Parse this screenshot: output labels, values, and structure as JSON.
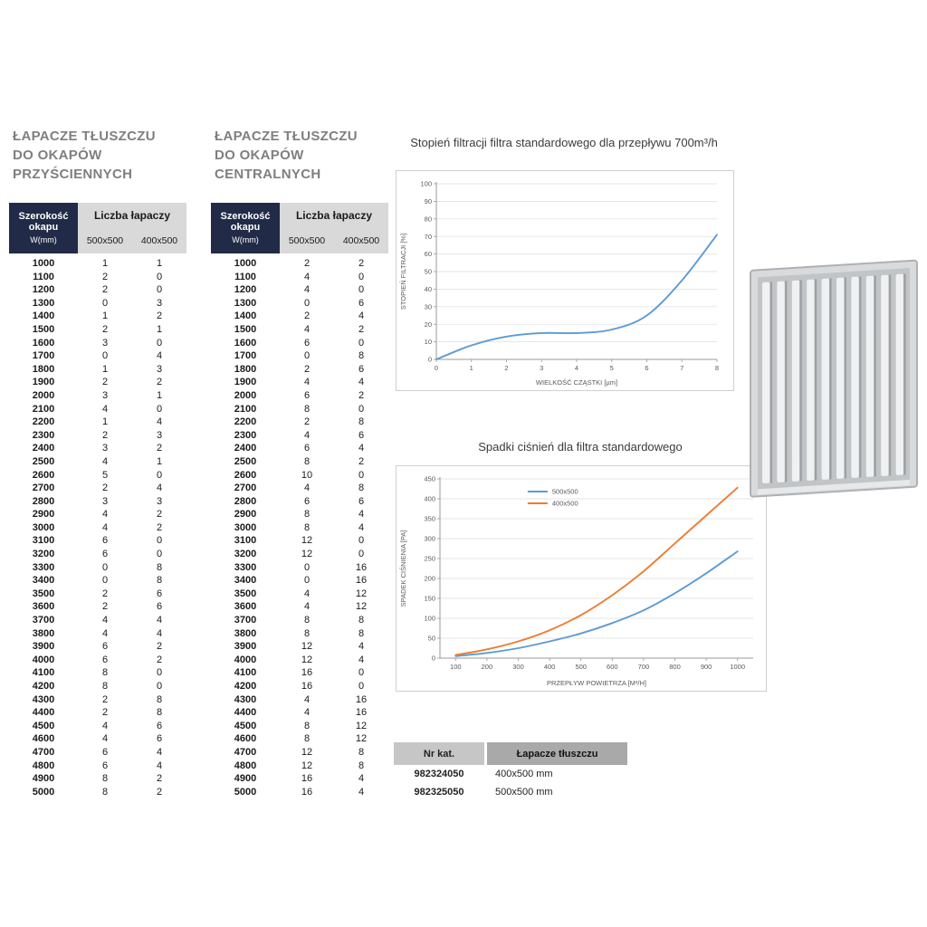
{
  "page": {
    "background": "#ffffff"
  },
  "table_header": {
    "width_line1": "Szerokość",
    "width_line2": "okapu",
    "width_unit": "W(mm)",
    "count_label": "Liczba łapaczy",
    "col1": "500x500",
    "col2": "400x500"
  },
  "wall_table": {
    "title_lines": [
      "ŁAPACZE TŁUSZCZU",
      "DO OKAPÓW",
      "PRZYŚCIENNYCH"
    ],
    "rows": [
      [
        1000,
        1,
        1
      ],
      [
        1100,
        2,
        0
      ],
      [
        1200,
        2,
        0
      ],
      [
        1300,
        0,
        3
      ],
      [
        1400,
        1,
        2
      ],
      [
        1500,
        2,
        1
      ],
      [
        1600,
        3,
        0
      ],
      [
        1700,
        0,
        4
      ],
      [
        1800,
        1,
        3
      ],
      [
        1900,
        2,
        2
      ],
      [
        2000,
        3,
        1
      ],
      [
        2100,
        4,
        0
      ],
      [
        2200,
        1,
        4
      ],
      [
        2300,
        2,
        3
      ],
      [
        2400,
        3,
        2
      ],
      [
        2500,
        4,
        1
      ],
      [
        2600,
        5,
        0
      ],
      [
        2700,
        2,
        4
      ],
      [
        2800,
        3,
        3
      ],
      [
        2900,
        4,
        2
      ],
      [
        3000,
        4,
        2
      ],
      [
        3100,
        6,
        0
      ],
      [
        3200,
        6,
        0
      ],
      [
        3300,
        0,
        8
      ],
      [
        3400,
        0,
        8
      ],
      [
        3500,
        2,
        6
      ],
      [
        3600,
        2,
        6
      ],
      [
        3700,
        4,
        4
      ],
      [
        3800,
        4,
        4
      ],
      [
        3900,
        6,
        2
      ],
      [
        4000,
        6,
        2
      ],
      [
        4100,
        8,
        0
      ],
      [
        4200,
        8,
        0
      ],
      [
        4300,
        2,
        8
      ],
      [
        4400,
        2,
        8
      ],
      [
        4500,
        4,
        6
      ],
      [
        4600,
        4,
        6
      ],
      [
        4700,
        6,
        4
      ],
      [
        4800,
        6,
        4
      ],
      [
        4900,
        8,
        2
      ],
      [
        5000,
        8,
        2
      ]
    ]
  },
  "central_table": {
    "title_lines": [
      "ŁAPACZE TŁUSZCZU",
      "DO OKAPÓW",
      "CENTRALNYCH"
    ],
    "rows": [
      [
        1000,
        2,
        2
      ],
      [
        1100,
        4,
        0
      ],
      [
        1200,
        4,
        0
      ],
      [
        1300,
        0,
        6
      ],
      [
        1400,
        2,
        4
      ],
      [
        1500,
        4,
        2
      ],
      [
        1600,
        6,
        0
      ],
      [
        1700,
        0,
        8
      ],
      [
        1800,
        2,
        6
      ],
      [
        1900,
        4,
        4
      ],
      [
        2000,
        6,
        2
      ],
      [
        2100,
        8,
        0
      ],
      [
        2200,
        2,
        8
      ],
      [
        2300,
        4,
        6
      ],
      [
        2400,
        6,
        4
      ],
      [
        2500,
        8,
        2
      ],
      [
        2600,
        10,
        0
      ],
      [
        2700,
        4,
        8
      ],
      [
        2800,
        6,
        6
      ],
      [
        2900,
        8,
        4
      ],
      [
        3000,
        8,
        4
      ],
      [
        3100,
        12,
        0
      ],
      [
        3200,
        12,
        0
      ],
      [
        3300,
        0,
        16
      ],
      [
        3400,
        0,
        16
      ],
      [
        3500,
        4,
        12
      ],
      [
        3600,
        4,
        12
      ],
      [
        3700,
        8,
        8
      ],
      [
        3800,
        8,
        8
      ],
      [
        3900,
        12,
        4
      ],
      [
        4000,
        12,
        4
      ],
      [
        4100,
        16,
        0
      ],
      [
        4200,
        16,
        0
      ],
      [
        4300,
        4,
        16
      ],
      [
        4400,
        4,
        16
      ],
      [
        4500,
        8,
        12
      ],
      [
        4600,
        8,
        12
      ],
      [
        4700,
        12,
        8
      ],
      [
        4800,
        12,
        8
      ],
      [
        4900,
        16,
        4
      ],
      [
        5000,
        16,
        4
      ]
    ]
  },
  "chart_data": [
    {
      "type": "line",
      "title": "Stopień filtracji filtra standardowego dla przepływu 700m³/h",
      "xlabel": "WIELKOŚĆ CZĄSTKI [µm]",
      "ylabel": "STOPIEŃ FILTRACJI [%]",
      "xlim": [
        0,
        8
      ],
      "ylim": [
        0,
        100
      ],
      "xticks": [
        0,
        1,
        2,
        3,
        4,
        5,
        6,
        7,
        8
      ],
      "yticks": [
        0,
        10,
        20,
        30,
        40,
        50,
        60,
        70,
        80,
        90,
        100
      ],
      "grid": "horizontal",
      "legend": false,
      "series": [
        {
          "name": "stopień filtracji",
          "color": "#5b9bd5",
          "x": [
            0,
            1,
            2,
            3,
            4,
            5,
            6,
            7,
            8
          ],
          "y": [
            0,
            8,
            13,
            15,
            15,
            17,
            25,
            45,
            71
          ]
        }
      ]
    },
    {
      "type": "line",
      "title": "Spadki ciśnień dla filtra standardowego",
      "xlabel": "PRZEPŁYW POWIETRZA [M³/H]",
      "ylabel": "SPADEK CIŚNIENIA [PA]",
      "xlim": [
        50,
        1050
      ],
      "ylim": [
        0,
        450
      ],
      "xticks": [
        100,
        200,
        300,
        400,
        500,
        600,
        700,
        800,
        900,
        1000
      ],
      "yticks": [
        0,
        50,
        100,
        150,
        200,
        250,
        300,
        350,
        400,
        450
      ],
      "grid": "horizontal",
      "legend": true,
      "series": [
        {
          "name": "500x500",
          "color": "#5b9bd5",
          "x": [
            100,
            200,
            300,
            400,
            500,
            600,
            700,
            800,
            900,
            1000
          ],
          "y": [
            5,
            13,
            25,
            42,
            62,
            88,
            120,
            163,
            213,
            268
          ]
        },
        {
          "name": "400x500",
          "color": "#ed7d31",
          "x": [
            100,
            200,
            300,
            400,
            500,
            600,
            700,
            800,
            900,
            1000
          ],
          "y": [
            8,
            22,
            42,
            70,
            108,
            158,
            218,
            288,
            358,
            428
          ]
        }
      ]
    }
  ],
  "catalog": {
    "header_nr": "Nr kat.",
    "header_name": "Łapacze tłuszczu",
    "rows": [
      {
        "nr": "982324050",
        "size": "400x500 mm"
      },
      {
        "nr": "982325050",
        "size": "500x500 mm"
      }
    ]
  },
  "colors": {
    "accent_blue": "#5b9bd5",
    "accent_orange": "#ed7d31",
    "header_navy": "#212b47",
    "header_gray": "#d9d9d9"
  }
}
